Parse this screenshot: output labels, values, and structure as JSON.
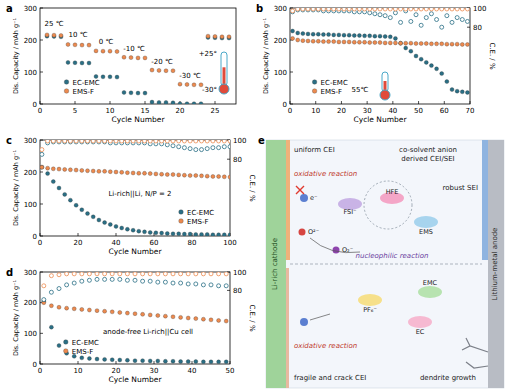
{
  "chart_data": [
    {
      "type": "scatter",
      "title": "a",
      "x_label": "Cycle Number",
      "y_label": "Dis. Capacity / mAh g⁻¹",
      "x": [
        1,
        2,
        3,
        4,
        5,
        6,
        7,
        8,
        9,
        10,
        11,
        12,
        13,
        14,
        15,
        16,
        17,
        18,
        19,
        20,
        21,
        22,
        23,
        24,
        25,
        26,
        27
      ],
      "xlim": [
        0,
        28
      ],
      "xticks": [
        0,
        5,
        10,
        15,
        20,
        25
      ],
      "ylim": [
        0,
        300
      ],
      "yticks": [
        0,
        100,
        200,
        300
      ],
      "legend": "lower left",
      "annotations": [
        "25 ℃",
        "10 ℃",
        "0 ℃",
        "-10 ℃",
        "-20 ℃",
        "-30 ℃",
        "+25°",
        "-30°"
      ],
      "series": [
        {
          "name": "EC-EMC",
          "color": "#2a6f85",
          "marker": "circle",
          "values": [
            212,
            211,
            210,
            130,
            129,
            128,
            128,
            86,
            85,
            85,
            84,
            36,
            35,
            34,
            34,
            6,
            5,
            5,
            4,
            1,
            1,
            1,
            1,
            208,
            207,
            206,
            206
          ]
        },
        {
          "name": "EMS-F",
          "color": "#ec8a4f",
          "marker": "circle",
          "values": [
            216,
            215,
            214,
            186,
            185,
            184,
            184,
            166,
            165,
            165,
            164,
            146,
            145,
            144,
            144,
            106,
            105,
            104,
            104,
            62,
            61,
            60,
            60,
            212,
            211,
            210,
            210
          ]
        }
      ]
    },
    {
      "type": "scatter",
      "title": "b",
      "x_label": "Cycle Number",
      "y_label": "Dis. Capacity / mAh g⁻¹",
      "y2_label": "C.E. / %",
      "x": [
        1,
        3,
        5,
        7,
        9,
        11,
        13,
        15,
        17,
        19,
        21,
        23,
        25,
        27,
        29,
        31,
        33,
        35,
        37,
        39,
        41,
        43,
        45,
        47,
        49,
        51,
        53,
        55,
        57,
        59,
        61,
        63,
        65,
        67,
        69
      ],
      "xlim": [
        0,
        70
      ],
      "xticks": [
        0,
        10,
        20,
        30,
        40,
        50,
        60,
        70
      ],
      "ylim": [
        0,
        300
      ],
      "yticks": [
        0,
        100,
        200,
        300
      ],
      "y2lim": [
        0,
        100
      ],
      "y2ticks": [
        80,
        100
      ],
      "legend": "lower left",
      "annotations": [
        "55℃"
      ],
      "series": [
        {
          "name": "EC-EMC",
          "color": "#2a6f85",
          "marker": "circle",
          "values": [
            228,
            222,
            220,
            219,
            218,
            218,
            217,
            217,
            216,
            216,
            215,
            215,
            214,
            214,
            213,
            213,
            212,
            212,
            211,
            210,
            205,
            190,
            175,
            165,
            150,
            140,
            130,
            120,
            110,
            95,
            70,
            45,
            40,
            38,
            36
          ]
        },
        {
          "name": "EMS-F",
          "color": "#ec8a4f",
          "marker": "circle",
          "values": [
            205,
            200,
            198,
            197,
            196,
            196,
            195,
            195,
            195,
            194,
            194,
            194,
            193,
            193,
            193,
            192,
            192,
            192,
            191,
            191,
            191,
            190,
            190,
            190,
            189,
            189,
            189,
            188,
            188,
            188,
            187,
            187,
            187,
            186,
            186
          ]
        },
        {
          "name": "EC-EMC",
          "color": "#2a6f85",
          "marker": "open-circle",
          "axis": "y2",
          "values": [
            96,
            98,
            98,
            98,
            98,
            98,
            97,
            97,
            97,
            97,
            97,
            97,
            96,
            96,
            96,
            95,
            94,
            93,
            92,
            90,
            95,
            85,
            97,
            86,
            93,
            82,
            90,
            94,
            88,
            80,
            92,
            85,
            90,
            88,
            86
          ]
        },
        {
          "name": "EMS-F",
          "color": "#ec8a4f",
          "marker": "open-circle",
          "axis": "y2",
          "values": [
            97,
            99,
            99,
            99,
            99,
            99,
            99,
            99,
            99,
            99,
            99,
            99,
            99,
            99,
            99,
            99,
            99,
            99,
            99,
            99,
            99,
            99,
            99,
            99,
            99,
            99,
            99,
            99,
            99,
            99,
            99,
            99,
            99,
            99,
            99
          ]
        }
      ]
    },
    {
      "type": "scatter",
      "title": "c",
      "x_label": "Cycle Number",
      "y_label": "Dis. Capacity / mAh g⁻¹",
      "y2_label": "C.E. / %",
      "x": [
        1,
        4,
        7,
        10,
        13,
        16,
        19,
        22,
        25,
        28,
        31,
        34,
        37,
        40,
        43,
        46,
        49,
        52,
        55,
        58,
        61,
        64,
        67,
        70,
        73,
        76,
        79,
        82,
        85,
        88,
        91,
        94,
        97,
        100
      ],
      "xlim": [
        0,
        100
      ],
      "xticks": [
        0,
        20,
        40,
        60,
        80,
        100
      ],
      "ylim": [
        0,
        300
      ],
      "yticks": [
        0,
        100,
        200,
        300
      ],
      "y2lim": [
        0,
        100
      ],
      "y2ticks": [
        80,
        100
      ],
      "legend": "lower right",
      "annotations": [
        "Li-rich||Li, N/P = 2"
      ],
      "series": [
        {
          "name": "EC-EMC",
          "color": "#2a6f85",
          "marker": "circle",
          "values": [
            215,
            195,
            170,
            150,
            130,
            112,
            96,
            82,
            70,
            60,
            50,
            42,
            36,
            30,
            25,
            21,
            18,
            15,
            13,
            11,
            10,
            9,
            8,
            7,
            7,
            6,
            6,
            5,
            5,
            5,
            4,
            4,
            4,
            4
          ]
        },
        {
          "name": "EMS-F",
          "color": "#ec8a4f",
          "marker": "circle",
          "values": [
            215,
            212,
            210,
            209,
            208,
            207,
            206,
            205,
            204,
            203,
            202,
            202,
            201,
            200,
            199,
            198,
            197,
            196,
            196,
            195,
            194,
            193,
            192,
            192,
            191,
            190,
            189,
            189,
            188,
            187,
            186,
            186,
            185,
            184
          ]
        },
        {
          "name": "EC-EMC",
          "color": "#2a6f85",
          "marker": "open-circle",
          "axis": "y2",
          "values": [
            85,
            97,
            98,
            98,
            98,
            98,
            98,
            98,
            98,
            98,
            98,
            98,
            97,
            97,
            97,
            97,
            97,
            97,
            97,
            96,
            96,
            96,
            95,
            94,
            93,
            92,
            91,
            90,
            90,
            91,
            92,
            92,
            93,
            93
          ]
        },
        {
          "name": "EMS-F",
          "color": "#ec8a4f",
          "marker": "open-circle",
          "axis": "y2",
          "values": [
            90,
            99,
            99,
            99,
            99,
            99,
            99,
            99,
            99,
            99,
            99,
            99,
            99,
            99,
            99,
            99,
            99,
            99,
            99,
            99,
            99,
            99,
            99,
            99,
            99,
            99,
            99,
            99,
            99,
            99,
            99,
            99,
            99,
            99
          ]
        }
      ]
    },
    {
      "type": "scatter",
      "title": "d",
      "x_label": "Cycle Number",
      "y_label": "Dis. Capacity / mAh g⁻¹",
      "y2_label": "C.E. / %",
      "x": [
        1,
        3,
        5,
        7,
        9,
        11,
        13,
        15,
        17,
        19,
        21,
        23,
        25,
        27,
        29,
        31,
        33,
        35,
        37,
        39,
        41,
        43,
        45,
        47,
        49
      ],
      "xlim": [
        0,
        50
      ],
      "xticks": [
        0,
        10,
        20,
        30,
        40,
        50
      ],
      "ylim": [
        0,
        300
      ],
      "yticks": [
        0,
        100,
        200,
        300
      ],
      "y2lim": [
        0,
        100
      ],
      "y2ticks": [
        80,
        100
      ],
      "legend": "lower left",
      "annotations": [
        "anode-free Li-rich||Cu cell"
      ],
      "series": [
        {
          "name": "EC-EMC",
          "color": "#2a6f85",
          "marker": "circle",
          "values": [
            205,
            120,
            60,
            35,
            25,
            20,
            18,
            16,
            15,
            14,
            13,
            12,
            11,
            11,
            10,
            10,
            9,
            9,
            8,
            8,
            8,
            7,
            7,
            7,
            7
          ]
        },
        {
          "name": "EMS-F",
          "color": "#ec8a4f",
          "marker": "circle",
          "values": [
            200,
            190,
            185,
            182,
            180,
            178,
            176,
            174,
            172,
            170,
            168,
            166,
            164,
            162,
            160,
            158,
            156,
            154,
            152,
            150,
            148,
            146,
            144,
            142,
            140
          ]
        },
        {
          "name": "EC-EMC",
          "color": "#2a6f85",
          "marker": "open-circle",
          "axis": "y2",
          "values": [
            70,
            78,
            82,
            86,
            88,
            90,
            91,
            92,
            92,
            92,
            92,
            91,
            91,
            90,
            90,
            89,
            89,
            88,
            88,
            87,
            87,
            86,
            86,
            85,
            85
          ]
        },
        {
          "name": "EMS-F",
          "color": "#ec8a4f",
          "marker": "open-circle",
          "axis": "y2",
          "values": [
            85,
            96,
            97,
            98,
            98,
            98,
            98,
            98,
            98,
            98,
            98,
            98,
            98,
            98,
            98,
            98,
            98,
            98,
            98,
            98,
            98,
            98,
            98,
            98,
            98
          ]
        }
      ]
    }
  ],
  "diagram": {
    "panel": "e",
    "cathode": "Li-rich cathode",
    "anode": "Lithium-metal anode",
    "top_left": "uniform CEI",
    "top_right": [
      "co-solvent anion",
      "derived CEI/SEI"
    ],
    "oxidative_top": "oxidative reaction",
    "robust": "robust SEI",
    "nucleophilic": "nucleophilic reaction",
    "oxidative_bottom": "oxidative reaction",
    "fragile": "fragile and crack CEI",
    "dendrite": "dendrite growth",
    "species_top": [
      "FSI⁻",
      "HFE",
      "EMS"
    ],
    "species_bottom": [
      "PF₆⁻",
      "EMC",
      "EC"
    ],
    "oxygen": [
      "O²⁻",
      "O₂⁻"
    ],
    "electron": "e⁻"
  }
}
